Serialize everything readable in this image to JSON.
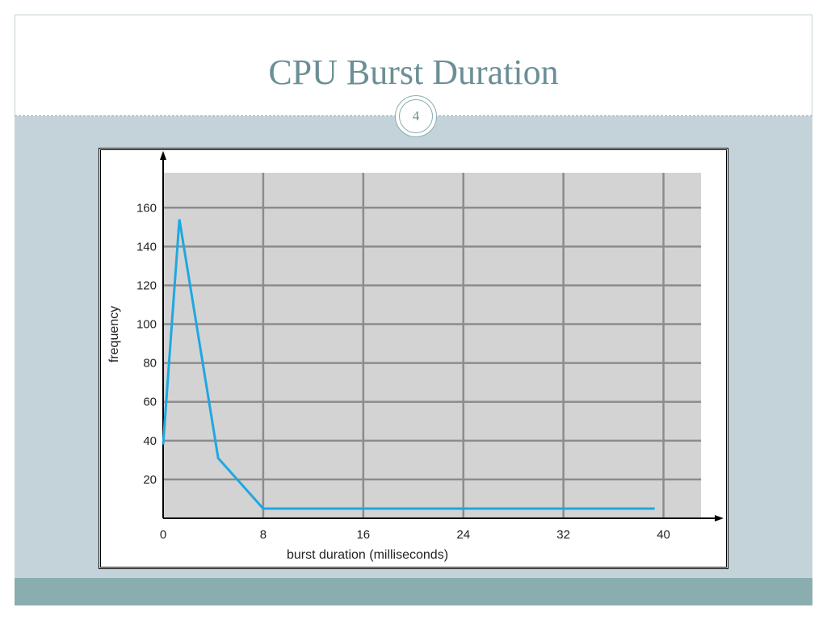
{
  "slide": {
    "title": "CPU Burst Duration",
    "number": "4"
  },
  "colors": {
    "title": "#6b8f96",
    "content_bg": "#c4d3d9",
    "footer_bg": "#8aaeb0",
    "plot_bg": "#d3d3d3",
    "grid": "#8c8c8c",
    "line": "#1ea8e0"
  },
  "chart_data": {
    "type": "line",
    "title": "",
    "xlabel": "burst duration (milliseconds)",
    "ylabel": "frequency",
    "xlim": [
      0,
      43
    ],
    "ylim": [
      0,
      178
    ],
    "xticks": [
      0,
      8,
      16,
      24,
      32,
      40
    ],
    "yticks": [
      20,
      40,
      60,
      80,
      100,
      120,
      140,
      160
    ],
    "grid": true,
    "series": [
      {
        "x": [
          0,
          1.3,
          4.4,
          8,
          39.3
        ],
        "y": [
          38,
          154,
          31,
          5,
          5
        ]
      }
    ]
  }
}
